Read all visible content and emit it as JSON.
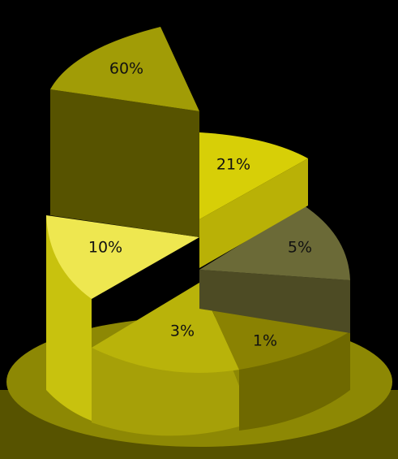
{
  "chart_data": {
    "type": "pie",
    "style": "3d-stepped",
    "title": "",
    "slices": [
      {
        "label": "60%",
        "value": 60,
        "color": "#a19c06"
      },
      {
        "label": "21%",
        "value": 21,
        "color": "#d7cf07"
      },
      {
        "label": "5%",
        "value": 5,
        "color": "#6b6a37"
      },
      {
        "label": "1%",
        "value": 1,
        "color": "#8a8202"
      },
      {
        "label": "3%",
        "value": 3,
        "color": "#b9b30a"
      },
      {
        "label": "10%",
        "value": 10,
        "color": "#eee750"
      }
    ],
    "base_color": "#666200"
  }
}
